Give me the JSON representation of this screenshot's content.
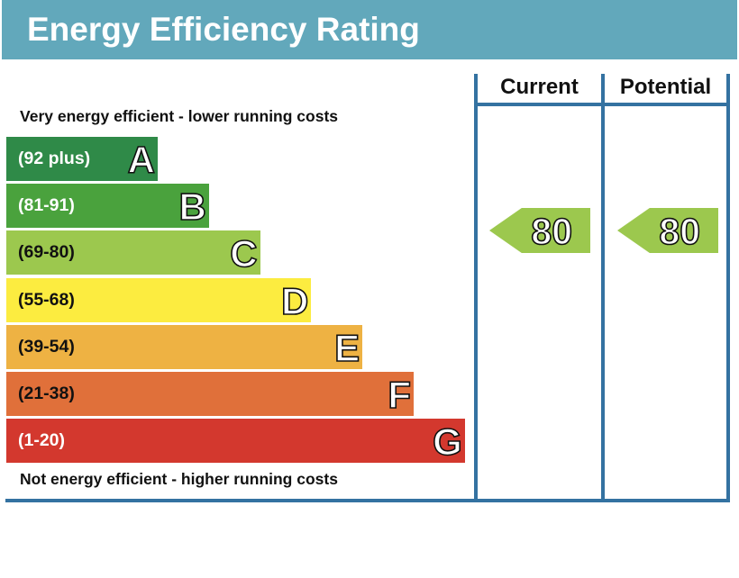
{
  "header": {
    "title": "Energy Efficiency Rating"
  },
  "notes": {
    "top": "Very energy efficient - lower running costs",
    "bottom": "Not energy efficient - higher running costs"
  },
  "columns": {
    "current": "Current",
    "potential": "Potential"
  },
  "chart_data": {
    "type": "bar",
    "title": "Energy Efficiency Rating",
    "categories": [
      "A",
      "B",
      "C",
      "D",
      "E",
      "F",
      "G"
    ],
    "ranges": [
      "(92 plus)",
      "(81-91)",
      "(69-80)",
      "(55-68)",
      "(39-54)",
      "(21-38)",
      "(1-20)"
    ],
    "colors": [
      "#2f8a48",
      "#4aa23d",
      "#9cc84e",
      "#fcec40",
      "#eeb243",
      "#e0703a",
      "#d3382e"
    ],
    "range_text_colors": [
      "#ffffff",
      "#ffffff",
      "#111111",
      "#111111",
      "#111111",
      "#111111",
      "#ffffff"
    ],
    "current": {
      "value": 80,
      "band": "C",
      "color": "#9cc84e"
    },
    "potential": {
      "value": 80,
      "band": "C",
      "color": "#9cc84e"
    }
  }
}
